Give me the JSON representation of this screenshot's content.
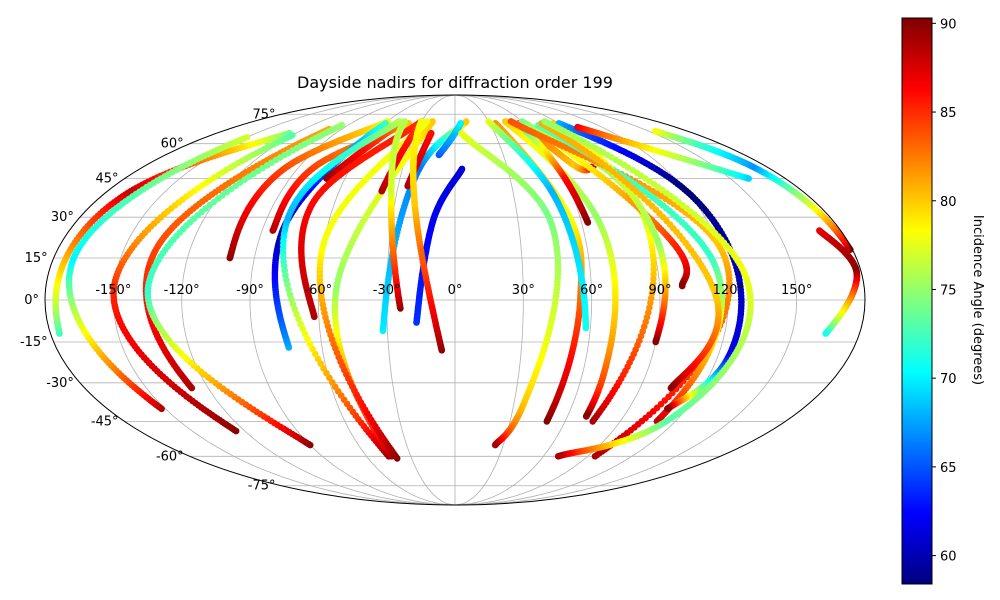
{
  "chart_data": {
    "type": "scatter",
    "projection": "mollweide",
    "title": "Dayside nadirs for diffraction order 199",
    "grid": true,
    "lon_ticks": [
      -150,
      -120,
      -90,
      -60,
      -30,
      0,
      30,
      60,
      90,
      120,
      150
    ],
    "lon_tick_labels": [
      "-150°",
      "-120°",
      "-90°",
      "-60°",
      "-30°",
      "0°",
      "30°",
      "60°",
      "90°",
      "120°",
      "150°"
    ],
    "lat_ticks": [
      75,
      60,
      45,
      30,
      15,
      0,
      -15,
      -30,
      -45,
      -60,
      -75
    ],
    "lat_tick_labels": [
      "75°",
      "60°",
      "45°",
      "30°",
      "15°",
      "0°",
      "-15°",
      "-30°",
      "-45°",
      "-60°",
      "-75°"
    ],
    "colorbar": {
      "label": "Incidence Angle (degrees)",
      "colormap": "jet",
      "range": [
        58.4,
        90.3
      ],
      "ticks": [
        60,
        65,
        70,
        75,
        80,
        85,
        90
      ],
      "tick_labels": [
        "60",
        "65",
        "70",
        "75",
        "80",
        "85",
        "90"
      ]
    },
    "tracks": [
      {
        "points": [
          [
            179,
            18,
            90
          ],
          [
            172,
            50,
            67
          ],
          [
            155,
            66,
            78
          ]
        ]
      },
      {
        "points": [
          [
            -176,
            -12,
            72
          ],
          [
            -168,
            40,
            88
          ],
          [
            -125,
            65,
            74
          ]
        ]
      },
      {
        "points": [
          [
            -152,
            -40,
            89
          ],
          [
            -171,
            15,
            70
          ],
          [
            -150,
            63,
            77
          ]
        ]
      },
      {
        "points": [
          [
            -125,
            -49,
            90
          ],
          [
            -150,
            5,
            85
          ],
          [
            -120,
            64,
            73
          ]
        ]
      },
      {
        "points": [
          [
            -128,
            -32,
            89
          ],
          [
            -135,
            20,
            84
          ],
          [
            -100,
            67,
            81
          ]
        ]
      },
      {
        "points": [
          [
            -90,
            -55,
            90
          ],
          [
            -135,
            3,
            72
          ],
          [
            -95,
            69,
            75
          ]
        ]
      },
      {
        "points": [
          [
            -101,
            15,
            90
          ],
          [
            -97,
            50,
            84
          ],
          [
            -60,
            71,
            78
          ]
        ]
      },
      {
        "points": [
          [
            -85,
            25,
            89
          ],
          [
            -80,
            51,
            84
          ],
          [
            -40,
            70,
            80
          ]
        ]
      },
      {
        "points": [
          [
            -75,
            -17,
            68
          ],
          [
            -80,
            28,
            59
          ],
          [
            -60,
            70,
            72
          ]
        ]
      },
      {
        "points": [
          [
            -70,
            45,
            90
          ],
          [
            -47,
            70,
            82
          ]
        ]
      },
      {
        "points": [
          [
            -62,
            -6,
            89
          ],
          [
            -70,
            38,
            86
          ],
          [
            -30,
            71,
            85
          ]
        ]
      },
      {
        "points": [
          [
            -45,
            -60,
            90
          ],
          [
            -80,
            30,
            68
          ],
          [
            -50,
            71,
            76
          ]
        ]
      },
      {
        "points": [
          [
            -43,
            -60,
            89
          ],
          [
            -52,
            5,
            75
          ],
          [
            -20,
            71,
            80
          ]
        ]
      },
      {
        "points": [
          [
            -40,
            -61,
            90
          ],
          [
            -60,
            20,
            78
          ],
          [
            -25,
            71,
            78
          ]
        ]
      },
      {
        "points": [
          [
            -38,
            40,
            89
          ],
          [
            -30,
            70,
            84
          ]
        ]
      },
      {
        "points": [
          [
            -32,
            -11,
            70
          ],
          [
            -20,
            50,
            66
          ],
          [
            10,
            71,
            80
          ]
        ]
      },
      {
        "points": [
          [
            -25,
            42,
            89
          ],
          [
            -18,
            65,
            86
          ]
        ]
      },
      {
        "points": [
          [
            -24,
            -3,
            90
          ],
          [
            -33,
            40,
            77
          ],
          [
            -45,
            71,
            76
          ]
        ]
      },
      {
        "points": [
          [
            -17,
            -8,
            64
          ],
          [
            -10,
            30,
            62
          ],
          [
            4,
            49,
            61
          ]
        ]
      },
      {
        "points": [
          [
            -6,
            -18,
            90
          ],
          [
            -20,
            35,
            80
          ],
          [
            -30,
            71,
            78
          ]
        ]
      },
      {
        "points": [
          [
            -10,
            55,
            65
          ],
          [
            5,
            70,
            70
          ]
        ]
      },
      {
        "points": [
          [
            5,
            65,
            78
          ],
          [
            45,
            30,
            74
          ],
          [
            35,
            -38,
            80
          ],
          [
            25,
            -55,
            89
          ]
        ]
      },
      {
        "points": [
          [
            35,
            70,
            82
          ],
          [
            55,
            30,
            78
          ],
          [
            55,
            0,
            83
          ],
          [
            50,
            -45,
            90
          ]
        ]
      },
      {
        "points": [
          [
            30,
            71,
            78
          ],
          [
            50,
            40,
            68
          ],
          [
            58,
            -10,
            71
          ]
        ]
      },
      {
        "points": [
          [
            45,
            71,
            80
          ],
          [
            68,
            30,
            75
          ],
          [
            70,
            -25,
            83
          ],
          [
            70,
            -43,
            90
          ]
        ]
      },
      {
        "points": [
          [
            55,
            70,
            84
          ],
          [
            70,
            50,
            80
          ],
          [
            80,
            50,
            88
          ]
        ]
      },
      {
        "points": [
          [
            55,
            68,
            70
          ],
          [
            60,
            45,
            86
          ],
          [
            63,
            28,
            90
          ]
        ]
      },
      {
        "points": [
          [
            50,
            71,
            80
          ],
          [
            90,
            40,
            75
          ],
          [
            75,
            -45,
            89
          ]
        ]
      },
      {
        "points": [
          [
            60,
            71,
            74
          ],
          [
            100,
            20,
            85
          ],
          [
            100,
            5,
            90
          ]
        ]
      },
      {
        "points": [
          [
            50,
            71,
            84
          ],
          [
            120,
            20,
            80
          ],
          [
            95,
            -60,
            89
          ]
        ]
      },
      {
        "points": [
          [
            70,
            69,
            73
          ],
          [
            115,
            15,
            72
          ],
          [
            110,
            -45,
            88
          ]
        ]
      },
      {
        "points": [
          [
            85,
            70,
            80
          ],
          [
            93,
            20,
            75
          ],
          [
            90,
            -15,
            90
          ]
        ]
      },
      {
        "points": [
          [
            75,
            70,
            81
          ],
          [
            115,
            0,
            80
          ],
          [
            105,
            -32,
            90
          ]
        ]
      },
      {
        "points": [
          [
            90,
            70,
            68
          ],
          [
            120,
            40,
            58
          ],
          [
            125,
            -20,
            62
          ],
          [
            110,
            -40,
            90
          ]
        ]
      },
      {
        "points": [
          [
            80,
            71,
            75
          ],
          [
            128,
            10,
            78
          ],
          [
            115,
            -45,
            73
          ],
          [
            70,
            -60,
            89
          ]
        ]
      },
      {
        "points": [
          [
            100,
            68,
            87
          ],
          [
            160,
            45,
            69
          ]
        ]
      },
      {
        "points": [
          [
            170,
            25,
            87
          ],
          [
            178,
            10,
            90
          ],
          [
            165,
            -12,
            71
          ]
        ]
      }
    ]
  }
}
